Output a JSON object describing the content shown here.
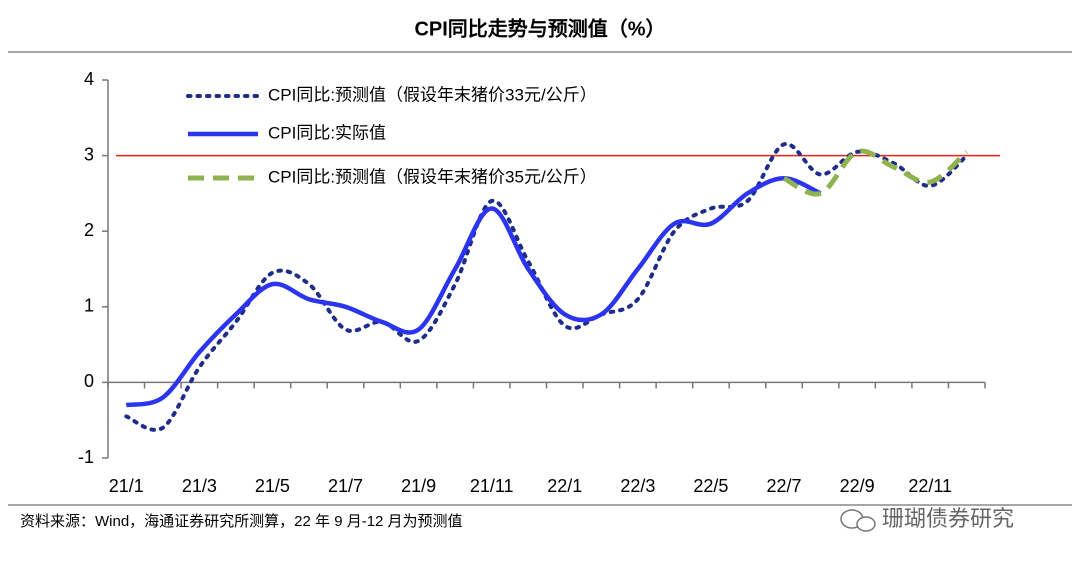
{
  "chart_data": {
    "type": "line",
    "title": "CPI同比走势与预测值（%）",
    "categories": [
      "21/1",
      null,
      "21/3",
      null,
      "21/5",
      null,
      "21/7",
      null,
      "21/9",
      null,
      "21/11",
      null,
      "22/1",
      null,
      "22/3",
      null,
      "22/5",
      null,
      "22/7",
      null,
      "22/9",
      null,
      "22/11",
      null
    ],
    "series": [
      {
        "name": "CPI同比:预测值（假设年末猪价33元/公斤）",
        "color": "#1f2d8a",
        "style": "dotted",
        "values": [
          -0.45,
          -0.6,
          0.2,
          0.8,
          1.45,
          1.3,
          0.7,
          0.8,
          0.55,
          1.3,
          2.4,
          1.6,
          0.75,
          0.9,
          1.1,
          2.0,
          2.3,
          2.4,
          3.15,
          2.75,
          3.05,
          2.9,
          2.6,
          3.0
        ]
      },
      {
        "name": "CPI同比:实际值",
        "color": "#2b35f0",
        "style": "solid",
        "values": [
          -0.3,
          -0.2,
          0.4,
          0.9,
          1.3,
          1.1,
          1.0,
          0.8,
          0.7,
          1.5,
          2.3,
          1.5,
          0.9,
          0.9,
          1.5,
          2.1,
          2.1,
          2.5,
          2.7,
          2.5,
          null,
          null,
          null,
          null
        ]
      },
      {
        "name": "CPI同比:预测值（假设年末猪价35元/公斤）",
        "color": "#8fb34f",
        "style": "dashed",
        "values": [
          null,
          null,
          null,
          null,
          null,
          null,
          null,
          null,
          null,
          null,
          null,
          null,
          null,
          null,
          null,
          null,
          null,
          null,
          2.7,
          2.5,
          3.05,
          2.85,
          2.65,
          3.05
        ]
      }
    ],
    "reference_line": {
      "value": 3,
      "color": "#e8231e"
    },
    "ylim": [
      -1,
      4
    ],
    "yticks": [
      -1,
      0,
      1,
      2,
      3,
      4
    ],
    "legend": "top-left",
    "source": "资料来源：Wind，海通证券研究所测算，22 年 9 月-12 月为预测值",
    "watermark": "珊瑚债券研究"
  }
}
